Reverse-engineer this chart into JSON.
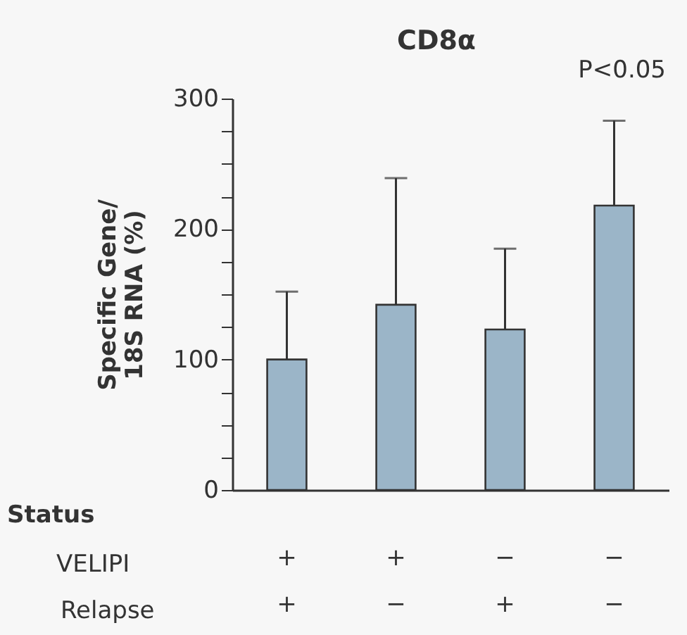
{
  "chart_data": {
    "type": "bar",
    "title": "CD8α",
    "ylabel": "Specific Gene/\n18S RNA (%)",
    "categories": [
      "+\n+",
      "+\n−",
      "−\n+",
      "−\n−"
    ],
    "values": [
      100,
      142,
      123,
      218
    ],
    "color": "#9bb5c8",
    "errors": [
      [
        100,
        152
      ],
      [
        142,
        239
      ],
      [
        123,
        185
      ],
      [
        218,
        283
      ]
    ],
    "ylim": [
      0,
      300
    ],
    "yticks": [
      0,
      {
        "value": 25,
        "label": null
      },
      {
        "value": 50,
        "label": null
      },
      {
        "value": 75,
        "label": null
      },
      100,
      {
        "value": 125,
        "label": null
      },
      {
        "value": 150,
        "label": null
      },
      {
        "value": 175,
        "label": null
      },
      200,
      {
        "value": 225,
        "label": null
      },
      {
        "value": 250,
        "label": null
      },
      {
        "value": 275,
        "label": null
      },
      300
    ],
    "annotations": [
      "P<0.05",
      "Status",
      "VELIPI",
      "Relapse"
    ],
    "grid": false
  }
}
